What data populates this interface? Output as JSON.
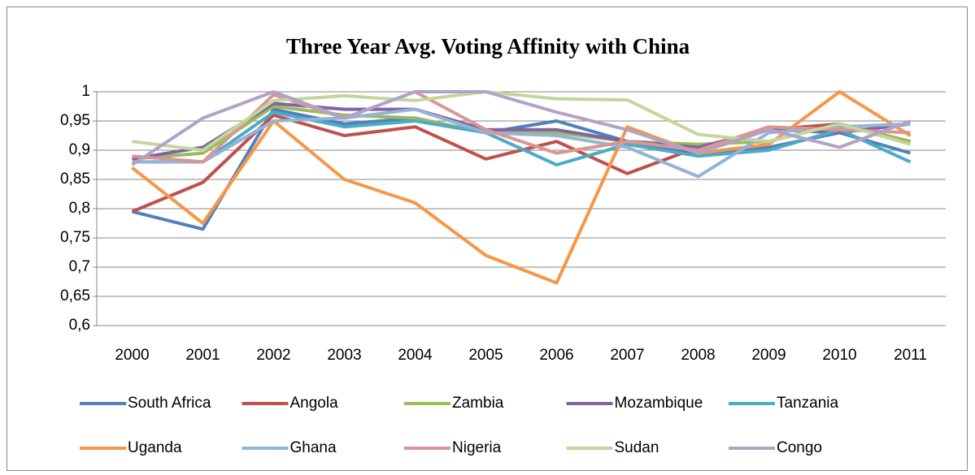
{
  "chart_data": {
    "type": "line",
    "title": "Three Year Avg. Voting Affinity with China",
    "categories": [
      "2000",
      "2001",
      "2002",
      "2003",
      "2004",
      "2005",
      "2006",
      "2007",
      "2008",
      "2009",
      "2010",
      "2011"
    ],
    "ylim": [
      0.6,
      1
    ],
    "yticks": [
      {
        "value": 0.6,
        "label": "0,6"
      },
      {
        "value": 0.65,
        "label": "0,65"
      },
      {
        "value": 0.7,
        "label": "0,7"
      },
      {
        "value": 0.75,
        "label": "0,75"
      },
      {
        "value": 0.8,
        "label": "0,8"
      },
      {
        "value": 0.85,
        "label": "0,85"
      },
      {
        "value": 0.9,
        "label": "0,9"
      },
      {
        "value": 0.95,
        "label": "0,95"
      },
      1
    ],
    "grid": true,
    "legend": "bottom",
    "series": [
      {
        "name": "South Africa",
        "color": "#4f81bd",
        "values": [
          0.795,
          0.765,
          0.97,
          0.945,
          0.955,
          0.93,
          0.95,
          0.915,
          0.895,
          0.905,
          0.93,
          0.895
        ]
      },
      {
        "name": "Angola",
        "color": "#c0504d",
        "values": [
          0.795,
          0.845,
          0.96,
          0.925,
          0.94,
          0.885,
          0.915,
          0.86,
          0.905,
          0.935,
          0.945,
          0.915
        ]
      },
      {
        "name": "Zambia",
        "color": "#9bbb59",
        "values": [
          0.885,
          0.895,
          0.975,
          0.96,
          0.955,
          0.93,
          0.93,
          0.915,
          0.91,
          0.915,
          0.945,
          0.915
        ]
      },
      {
        "name": "Mozambique",
        "color": "#8064a2",
        "values": [
          0.885,
          0.905,
          0.98,
          0.97,
          0.97,
          0.935,
          0.935,
          0.915,
          0.905,
          0.935,
          0.93,
          0.945
        ]
      },
      {
        "name": "Tanzania",
        "color": "#4bacc6",
        "values": [
          0.88,
          0.88,
          0.965,
          0.94,
          0.95,
          0.93,
          0.875,
          0.91,
          0.89,
          0.9,
          0.935,
          0.88
        ]
      },
      {
        "name": "Uganda",
        "color": "#f79646",
        "values": [
          0.87,
          0.775,
          0.95,
          0.85,
          0.81,
          0.72,
          0.673,
          0.94,
          0.895,
          0.91,
          1,
          0.925
        ]
      },
      {
        "name": "Ghana",
        "color": "#95b3d7",
        "values": [
          0.88,
          0.88,
          0.95,
          0.955,
          0.97,
          0.93,
          0.925,
          0.905,
          0.855,
          0.93,
          0.94,
          0.945
        ]
      },
      {
        "name": "Nigeria",
        "color": "#d99694",
        "values": [
          0.89,
          0.88,
          0.995,
          0.955,
          1,
          0.935,
          0.895,
          0.915,
          0.9,
          0.94,
          0.935,
          0.93
        ]
      },
      {
        "name": "Sudan",
        "color": "#c3d69b",
        "values": [
          0.915,
          0.9,
          0.985,
          0.993,
          0.985,
          1,
          0.988,
          0.986,
          0.927,
          0.915,
          0.945,
          0.91
        ]
      },
      {
        "name": "Congo",
        "color": "#b3a2c7",
        "values": [
          0.875,
          0.955,
          1,
          0.955,
          1,
          1,
          0.965,
          0.935,
          0.895,
          0.935,
          0.905,
          0.95
        ]
      }
    ]
  }
}
